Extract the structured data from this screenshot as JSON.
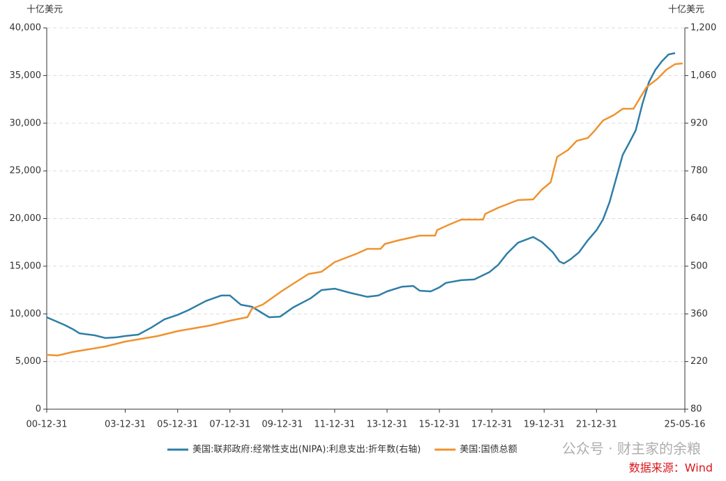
{
  "chart_data": {
    "type": "line",
    "y_unit": "十亿美元",
    "y2_unit": "十亿美元",
    "xlim": [
      "00-12-31",
      "25-05-16"
    ],
    "xticks": [
      "00-12-31",
      "03-12-31",
      "05-12-31",
      "07-12-31",
      "09-12-31",
      "11-12-31",
      "13-12-31",
      "15-12-31",
      "17-12-31",
      "19-12-31",
      "21-12-31",
      "25-05-16"
    ],
    "ylim": [
      0,
      40000
    ],
    "yticks": [
      0,
      {
        "value": 5000,
        "label": "5,000"
      },
      {
        "value": 10000,
        "label": "10,000"
      },
      {
        "value": 15000,
        "label": "15,000"
      },
      {
        "value": 20000,
        "label": "20,000"
      },
      {
        "value": 25000,
        "label": "25,000"
      },
      {
        "value": 30000,
        "label": "30,000"
      },
      {
        "value": 35000,
        "label": "35,000"
      },
      {
        "value": 40000,
        "label": "40,000"
      }
    ],
    "y2lim": [
      80,
      1200
    ],
    "y2ticks": [
      80,
      220,
      360,
      500,
      640,
      780,
      920,
      {
        "value": 1060,
        "label": "1,060"
      },
      {
        "value": 1200,
        "label": "1,200"
      }
    ],
    "grid": true,
    "legend": "bottom",
    "series": [
      {
        "name": "美国:联邦政府:经常性支出(NIPA):利息支出:折年数(右轴)",
        "color": "#2e7ea6",
        "axis": "y2",
        "x": [
          "00-12-31",
          "01-08-31",
          "01-12-31",
          "02-03-31",
          "02-10-31",
          "03-03-31",
          "03-08-31",
          "03-12-31",
          "04-06-30",
          "04-12-31",
          "05-06-30",
          "05-12-31",
          "06-05-31",
          "07-01-31",
          "07-08-31",
          "07-12-31",
          "08-05-31",
          "08-10-31",
          "09-06-30",
          "09-11-30",
          "10-05-31",
          "11-01-31",
          "11-06-30",
          "11-12-31",
          "12-07-31",
          "13-03-31",
          "13-08-31",
          "13-12-31",
          "14-07-31",
          "14-12-31",
          "15-03-31",
          "15-08-31",
          "15-12-31",
          "16-03-31",
          "16-10-31",
          "17-04-30",
          "17-11-30",
          "18-03-31",
          "18-07-31",
          "18-12-31",
          "19-07-31",
          "19-11-30",
          "20-04-30",
          "20-07-31",
          "20-09-30",
          "20-12-31",
          "21-04-30",
          "21-08-31",
          "21-12-31",
          "22-03-31",
          "22-06-30",
          "22-12-31",
          "23-03-31",
          "23-06-30",
          "23-09-30",
          "23-12-31",
          "24-03-31",
          "24-06-30",
          "24-09-30",
          "24-12-31"
        ],
        "values": [
          350,
          328,
          315,
          303,
          297,
          289,
          291,
          295,
          299,
          320,
          344,
          357,
          371,
          398,
          414,
          414,
          387,
          381,
          350,
          352,
          379,
          406,
          430,
          434,
          422,
          410,
          414,
          426,
          440,
          442,
          428,
          426,
          438,
          451,
          459,
          461,
          483,
          504,
          537,
          569,
          586,
          571,
          541,
          514,
          508,
          520,
          541,
          576,
          606,
          637,
          688,
          827,
          862,
          899,
          975,
          1040,
          1077,
          1102,
          1122,
          1126
        ]
      },
      {
        "name": "美国:国债总额",
        "color": "#f0922e",
        "axis": "y",
        "x": [
          "00-12-31",
          "01-05-31",
          "01-12-31",
          "03-03-31",
          "03-12-31",
          "05-03-31",
          "05-12-31",
          "07-03-31",
          "07-12-31",
          "08-08-31",
          "08-10-31",
          "09-03-31",
          "09-12-31",
          "10-12-31",
          "11-06-30",
          "11-12-31",
          "12-10-31",
          "13-03-31",
          "13-09-30",
          "13-11-30",
          "14-05-31",
          "15-03-31",
          "15-10-31",
          "15-11-30",
          "16-04-30",
          "16-10-31",
          "17-08-31",
          "17-09-30",
          "18-03-31",
          "18-12-31",
          "19-07-31",
          "19-11-30",
          "20-03-31",
          "20-06-30",
          "20-11-30",
          "21-03-31",
          "21-08-31",
          "21-11-30",
          "22-03-31",
          "22-08-31",
          "22-12-31",
          "23-05-31",
          "23-08-31",
          "23-11-30",
          "24-04-30",
          "24-08-31",
          "24-12-31",
          "25-04-15"
        ],
        "values": [
          5704,
          5630,
          6000,
          6580,
          7090,
          7680,
          8190,
          8780,
          9290,
          9650,
          10530,
          10970,
          12430,
          14190,
          14410,
          15430,
          16310,
          16820,
          16820,
          17330,
          17700,
          18210,
          18210,
          18790,
          19310,
          19890,
          19890,
          20480,
          21130,
          21940,
          22010,
          23040,
          23800,
          26470,
          27200,
          28160,
          28450,
          29180,
          30280,
          30860,
          31520,
          31520,
          32690,
          33790,
          34660,
          35610,
          36200,
          36270
        ]
      }
    ],
    "watermark": "公众号 · 财主家的余粮",
    "source": "数据来源：Wind"
  }
}
